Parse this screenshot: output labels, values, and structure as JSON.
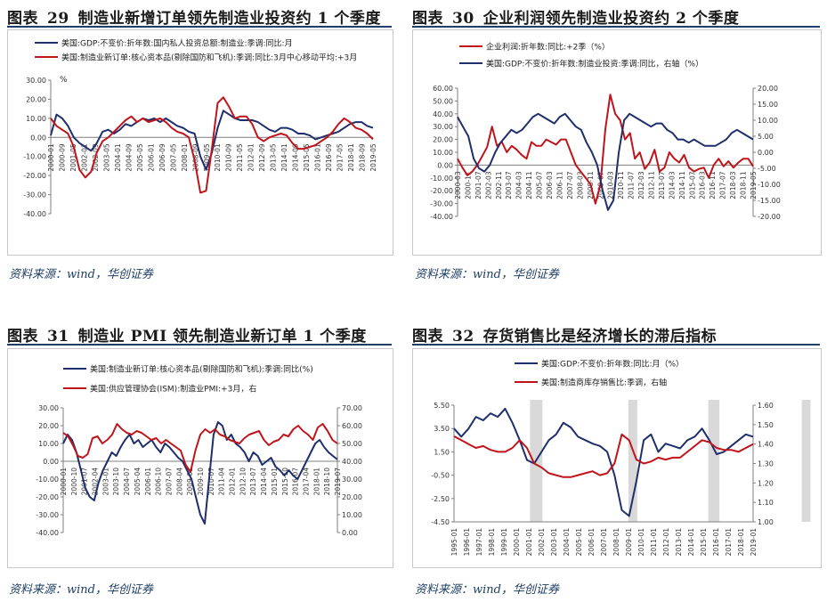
{
  "source_text": "资料来源：wind，华创证券",
  "charts": [
    {
      "id": "c29",
      "label": "图表",
      "number": "29",
      "title": "制造业新增订单领先制造业投资约 1 个季度",
      "chart_data": {
        "type": "line",
        "unit": "%",
        "y_left": {
          "min": -40,
          "max": 30,
          "step": 10,
          "format": "2"
        },
        "x_labels": [
          "2000-01",
          "2000-09",
          "2001-05",
          "2002-01",
          "2002-09",
          "2003-05",
          "2004-01",
          "2004-09",
          "2005-05",
          "2006-01",
          "2006-09",
          "2007-05",
          "2008-01",
          "2008-09",
          "2009-05",
          "2010-01",
          "2010-09",
          "2011-05",
          "2012-01",
          "2012-09",
          "2013-05",
          "2014-01",
          "2014-09",
          "2015-05",
          "2016-01",
          "2016-09",
          "2017-05",
          "2018-01",
          "2018-09",
          "2019-05"
        ],
        "series": [
          {
            "name": "美国:GDP:不变价:折年数:国内私人投资总额:制造业:季调:同比:月",
            "color": "#1f2f6b",
            "axis": "left",
            "values": [
              1,
              12,
              10,
              6,
              0,
              -3,
              -5,
              -7,
              -3,
              3,
              4,
              2,
              4,
              7,
              6,
              8,
              10,
              9,
              10,
              8,
              10,
              8,
              6,
              5,
              3,
              2,
              -10,
              -17,
              -8,
              5,
              14,
              12,
              10,
              9,
              9,
              9,
              8,
              6,
              4,
              3,
              5,
              5,
              4,
              2,
              2,
              1,
              -1,
              0,
              1,
              2,
              3,
              5,
              7,
              8,
              8,
              6,
              5
            ]
          },
          {
            "name": "美国:制造业新订单:核心资本品(剔除国防和飞机):季调:同比:3月中心移动平均:+3月",
            "color": "#c0141b",
            "axis": "left",
            "values": [
              10,
              6,
              4,
              2,
              -5,
              -17,
              -21,
              -18,
              -8,
              -2,
              0,
              3,
              6,
              9,
              11,
              8,
              10,
              8,
              9,
              10,
              8,
              5,
              3,
              2,
              0,
              -12,
              -29,
              -28,
              -6,
              18,
              21,
              16,
              10,
              11,
              11,
              7,
              0,
              -2,
              0,
              1,
              2,
              1,
              -3,
              -6,
              -6,
              -5,
              -4,
              -2,
              0,
              3,
              7,
              10,
              8,
              5,
              4,
              2,
              -1
            ]
          }
        ]
      }
    },
    {
      "id": "c30",
      "label": "图表",
      "number": "30",
      "title": "企业利润领先制造业投资约 2 个季度",
      "chart_data": {
        "type": "line",
        "y_left": {
          "min": -40,
          "max": 60,
          "step": 10,
          "format": "2"
        },
        "y_right": {
          "min": -20,
          "max": 20,
          "step": 5,
          "format": "2"
        },
        "x_labels": [
          "2000-03",
          "2000-11",
          "2001-07",
          "2002-03",
          "2002-11",
          "2003-07",
          "2004-03",
          "2004-11",
          "2005-07",
          "2006-03",
          "2006-11",
          "2007-07",
          "2008-03",
          "2008-11",
          "2009-07",
          "2010-03",
          "2010-11",
          "2011-07",
          "2012-03",
          "2012-11",
          "2013-07",
          "2014-03",
          "2014-11",
          "2015-07",
          "2016-03",
          "2016-11",
          "2017-07",
          "2018-03",
          "2018-11",
          "2019-05"
        ],
        "series": [
          {
            "name": "企业利润:折年数:同比:+2季（%）",
            "color": "#c0141b",
            "axis": "left",
            "values": [
              5,
              -2,
              -8,
              -5,
              0,
              7,
              14,
              30,
              15,
              18,
              10,
              15,
              12,
              8,
              5,
              18,
              15,
              15,
              20,
              18,
              16,
              20,
              20,
              10,
              0,
              -5,
              -10,
              -15,
              -30,
              -15,
              28,
              55,
              40,
              35,
              20,
              25,
              5,
              10,
              -3,
              2,
              12,
              -5,
              -2,
              10,
              5,
              2,
              8,
              -2,
              -5,
              -3,
              -2,
              -10,
              0,
              5,
              -1,
              3,
              -2,
              2,
              5,
              5,
              -1
            ]
          },
          {
            "name": "美国:GDP:不变价:折年数:制造业投资:季调:同比，右轴（%）",
            "color": "#1f2f6b",
            "axis": "right",
            "values": [
              11,
              8,
              5,
              -2,
              -5,
              -6,
              -4,
              0,
              3,
              5,
              7,
              6,
              7,
              9,
              11,
              12,
              11,
              10,
              9,
              11,
              12,
              10,
              8,
              7,
              3,
              0,
              -4,
              -12,
              -18,
              -15,
              0,
              10,
              12,
              11,
              10,
              9,
              8,
              9,
              9,
              7,
              6,
              4,
              4,
              3,
              4,
              3,
              2,
              2,
              2,
              3,
              4,
              6,
              7,
              6,
              5,
              4
            ]
          }
        ]
      }
    },
    {
      "id": "c31",
      "label": "图表",
      "number": "31",
      "title": "制造业 PMI 领先制造业新订单 1 个季度",
      "chart_data": {
        "type": "line",
        "y_left": {
          "min": -40,
          "max": 30,
          "step": 10,
          "format": "2"
        },
        "y_right": {
          "min": 0,
          "max": 70,
          "step": 10,
          "format": "2"
        },
        "x_labels": [
          "2000-01",
          "2000-10",
          "2001-07",
          "2002-04",
          "2003-01",
          "2003-10",
          "2004-07",
          "2005-04",
          "2006-01",
          "2006-10",
          "2007-07",
          "2008-04",
          "2009-01",
          "2009-10",
          "2010-07",
          "2011-04",
          "2012-01",
          "2012-10",
          "2013-07",
          "2014-04",
          "2015-01",
          "2015-10",
          "2016-07",
          "2017-04",
          "2018-01",
          "2018-10",
          "2019-07"
        ],
        "series": [
          {
            "name": "美国:制造业新订单:核心资本品(剔除国防和飞机):季调:同比(%)",
            "color": "#1f2f6b",
            "axis": "left",
            "values": [
              10,
              15,
              12,
              5,
              -5,
              -15,
              -20,
              -22,
              -12,
              -5,
              0,
              5,
              3,
              8,
              12,
              15,
              10,
              12,
              8,
              10,
              12,
              8,
              5,
              10,
              8,
              5,
              2,
              0,
              -5,
              -10,
              -20,
              -30,
              -35,
              -10,
              15,
              22,
              20,
              12,
              15,
              10,
              8,
              5,
              0,
              5,
              3,
              -2,
              0,
              2,
              -3,
              -5,
              -8,
              -5,
              -8,
              -10,
              -5,
              0,
              5,
              10,
              12,
              8,
              5,
              3,
              1
            ]
          },
          {
            "name": "美国:供应管理协会(ISM):制造业PMI:+3月，右",
            "color": "#c0141b",
            "axis": "right",
            "values": [
              56,
              54,
              49,
              43,
              42,
              44,
              53,
              54,
              50,
              52,
              55,
              61,
              58,
              56,
              55,
              57,
              56,
              54,
              52,
              53,
              50,
              52,
              50,
              48,
              46,
              38,
              34,
              46,
              55,
              58,
              56,
              58,
              55,
              54,
              52,
              51,
              50,
              53,
              55,
              56,
              57,
              52,
              49,
              51,
              52,
              55,
              54,
              58,
              60,
              57,
              55,
              52,
              59,
              61,
              57,
              52,
              50
            ]
          }
        ]
      }
    },
    {
      "id": "c32",
      "label": "图表",
      "number": "32",
      "title": "存货销售比是经济增长的滞后指标",
      "chart_data": {
        "type": "line",
        "y_left": {
          "min": -4.5,
          "max": 5.5,
          "ticks": [
            -4.5,
            -2.5,
            -0.5,
            1.5,
            3.5,
            5.5
          ],
          "format": "2"
        },
        "y_right": {
          "min": 1.0,
          "max": 1.6,
          "step": 0.1,
          "format": "2"
        },
        "shaded_x": [
          [
            6.1,
            7.1
          ],
          [
            14.0,
            14.7
          ],
          [
            20.4,
            21.3
          ],
          [
            27.9,
            28.6
          ]
        ],
        "x_labels": [
          "1995-01",
          "1996-01",
          "1997-01",
          "1998-01",
          "1999-01",
          "2000-01",
          "2001-01",
          "2002-01",
          "2003-01",
          "2004-01",
          "2005-01",
          "2006-01",
          "2007-01",
          "2008-01",
          "2009-01",
          "2010-01",
          "2011-01",
          "2012-01",
          "2013-01",
          "2014-01",
          "2015-01",
          "2016-01",
          "2017-01",
          "2018-01",
          "2019-01"
        ],
        "series": [
          {
            "name": "美国:GDP:不变价:折年数:同比:月（%）",
            "color": "#1f2f6b",
            "axis": "left",
            "values": [
              3.5,
              2.8,
              3.5,
              4.5,
              4.2,
              4.8,
              4.5,
              5.2,
              4.0,
              2.5,
              0.8,
              0.5,
              1.5,
              2.5,
              3.0,
              4.0,
              3.6,
              2.8,
              2.5,
              2.2,
              2.0,
              1.5,
              -0.5,
              -3.5,
              -4.0,
              -1.0,
              2.5,
              3.0,
              1.5,
              2.2,
              2.0,
              1.8,
              2.5,
              2.8,
              3.5,
              2.5,
              1.3,
              1.5,
              2.0,
              2.5,
              3.0,
              2.8
            ]
          },
          {
            "name": "美国:制造商库存销售比:季调，右轴",
            "color": "#c0141b",
            "axis": "right",
            "values": [
              1.44,
              1.42,
              1.4,
              1.38,
              1.39,
              1.37,
              1.36,
              1.36,
              1.38,
              1.42,
              1.38,
              1.3,
              1.28,
              1.25,
              1.24,
              1.23,
              1.23,
              1.24,
              1.25,
              1.26,
              1.24,
              1.25,
              1.3,
              1.45,
              1.42,
              1.32,
              1.3,
              1.31,
              1.33,
              1.32,
              1.33,
              1.33,
              1.36,
              1.39,
              1.42,
              1.41,
              1.38,
              1.37,
              1.37,
              1.36,
              1.38,
              1.4
            ]
          }
        ]
      }
    }
  ]
}
